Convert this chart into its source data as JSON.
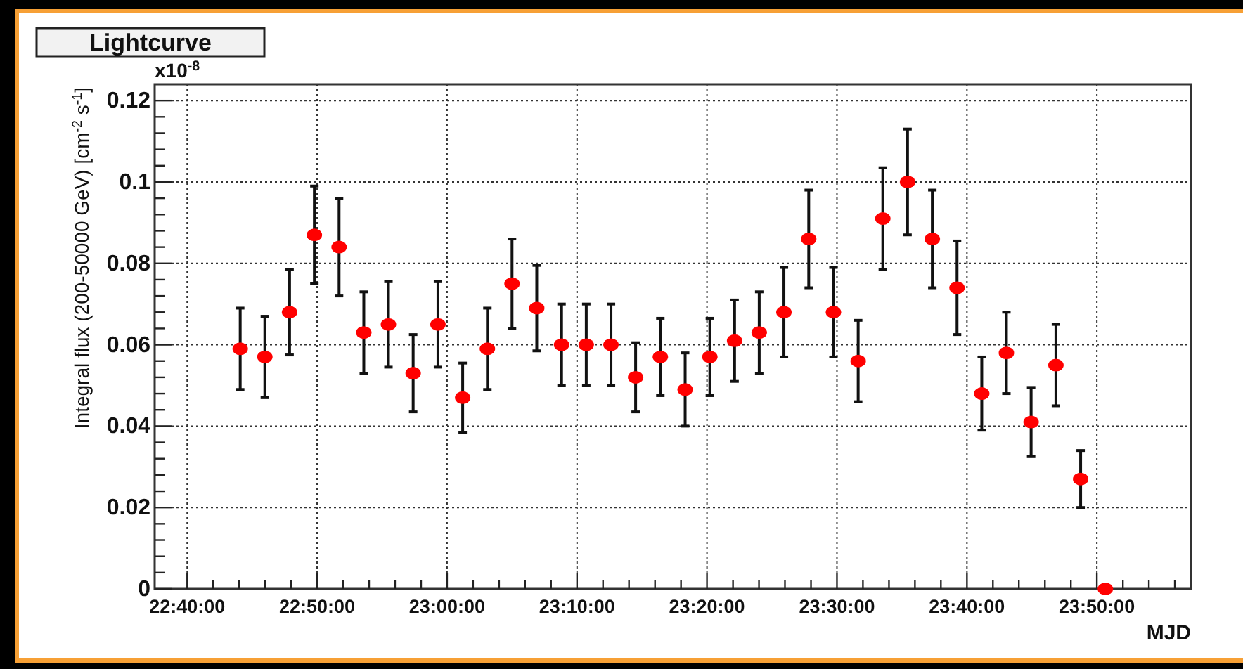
{
  "chart_data": {
    "type": "scatter",
    "title": "Lightcurve",
    "xlabel": "MJD",
    "ylabel": "Integral flux (200-50000 GeV) [cm$^{-2}$ s$^{-1}$]",
    "annotations": [
      "x10$^{-8}$"
    ],
    "x": [
      22.7347,
      22.7663,
      22.798,
      22.8298,
      22.8615,
      22.8932,
      22.9248,
      22.9565,
      22.9883,
      23.02,
      23.0517,
      23.0833,
      23.115,
      23.1468,
      23.1785,
      23.2102,
      23.2418,
      23.2735,
      23.3053,
      23.337,
      23.3687,
      23.4003,
      23.432,
      23.4638,
      23.4955,
      23.5272,
      23.5588,
      23.5905,
      23.6223,
      23.654,
      23.6857,
      23.7173,
      23.749,
      23.7808,
      23.8125,
      23.8442
    ],
    "series": [
      {
        "color": "#ff0000",
        "values": [
          0.059,
          0.057,
          0.068,
          0.087,
          0.084,
          0.063,
          0.065,
          0.053,
          0.065,
          0.047,
          0.059,
          0.075,
          0.069,
          0.06,
          0.06,
          0.06,
          0.052,
          0.057,
          0.049,
          0.057,
          0.061,
          0.063,
          0.068,
          0.086,
          0.068,
          0.056,
          0.091,
          0.1,
          0.086,
          0.074,
          0.048,
          0.058,
          0.041,
          0.055,
          0.027,
          0
        ],
        "errors": [
          0.01,
          0.01,
          0.0105,
          0.012,
          0.012,
          0.01,
          0.0105,
          0.0095,
          0.0105,
          0.0085,
          0.01,
          0.011,
          0.0105,
          0.01,
          0.01,
          0.01,
          0.0085,
          0.0095,
          0.009,
          0.0095,
          0.01,
          0.01,
          0.011,
          0.012,
          0.011,
          0.01,
          0.0125,
          0.013,
          0.012,
          0.0115,
          0.009,
          0.01,
          0.0085,
          0.01,
          0.007,
          null
        ]
      }
    ],
    "xlim": [
      22.625,
      23.954
    ],
    "xticks": [
      {
        "value": 22.6667,
        "label": "22:40:00"
      },
      {
        "value": 22.7,
        "label": null
      },
      {
        "value": 22.7333,
        "label": null
      },
      {
        "value": 22.7667,
        "label": null
      },
      {
        "value": 22.8,
        "label": null
      },
      {
        "value": 22.8333,
        "label": "22:50:00"
      },
      {
        "value": 22.8667,
        "label": null
      },
      {
        "value": 22.9,
        "label": null
      },
      {
        "value": 22.9333,
        "label": null
      },
      {
        "value": 22.9667,
        "label": null
      },
      {
        "value": 23.0,
        "label": "23:00:00"
      },
      {
        "value": 23.0333,
        "label": null
      },
      {
        "value": 23.0667,
        "label": null
      },
      {
        "value": 23.1,
        "label": null
      },
      {
        "value": 23.1333,
        "label": null
      },
      {
        "value": 23.1667,
        "label": "23:10:00"
      },
      {
        "value": 23.2,
        "label": null
      },
      {
        "value": 23.2333,
        "label": null
      },
      {
        "value": 23.2667,
        "label": null
      },
      {
        "value": 23.3,
        "label": null
      },
      {
        "value": 23.3333,
        "label": "23:20:00"
      },
      {
        "value": 23.3667,
        "label": null
      },
      {
        "value": 23.4,
        "label": null
      },
      {
        "value": 23.4333,
        "label": null
      },
      {
        "value": 23.4667,
        "label": null
      },
      {
        "value": 23.5,
        "label": "23:30:00"
      },
      {
        "value": 23.5333,
        "label": null
      },
      {
        "value": 23.5667,
        "label": null
      },
      {
        "value": 23.6,
        "label": null
      },
      {
        "value": 23.6333,
        "label": null
      },
      {
        "value": 23.6667,
        "label": "23:40:00"
      },
      {
        "value": 23.7,
        "label": null
      },
      {
        "value": 23.7333,
        "label": null
      },
      {
        "value": 23.7667,
        "label": null
      },
      {
        "value": 23.8,
        "label": null
      },
      {
        "value": 23.8333,
        "label": "23:50:00"
      },
      {
        "value": 23.8667,
        "label": null
      },
      {
        "value": 23.9,
        "label": null
      },
      {
        "value": 23.9333,
        "label": null
      }
    ],
    "ylim": [
      0,
      0.124
    ],
    "yticks": [
      0,
      {
        "value": 0.004,
        "label": null
      },
      {
        "value": 0.008,
        "label": null
      },
      {
        "value": 0.012,
        "label": null
      },
      {
        "value": 0.016,
        "label": null
      },
      0.02,
      {
        "value": 0.024,
        "label": null
      },
      {
        "value": 0.028,
        "label": null
      },
      {
        "value": 0.032,
        "label": null
      },
      {
        "value": 0.036,
        "label": null
      },
      0.04,
      {
        "value": 0.044,
        "label": null
      },
      {
        "value": 0.048,
        "label": null
      },
      {
        "value": 0.052,
        "label": null
      },
      {
        "value": 0.056,
        "label": null
      },
      0.06,
      {
        "value": 0.064,
        "label": null
      },
      {
        "value": 0.068,
        "label": null
      },
      {
        "value": 0.072,
        "label": null
      },
      {
        "value": 0.076,
        "label": null
      },
      0.08,
      {
        "value": 0.084,
        "label": null
      },
      {
        "value": 0.088,
        "label": null
      },
      {
        "value": 0.092,
        "label": null
      },
      {
        "value": 0.096,
        "label": null
      },
      0.1,
      {
        "value": 0.104,
        "label": null
      },
      {
        "value": 0.108,
        "label": null
      },
      {
        "value": 0.112,
        "label": null
      },
      {
        "value": 0.116,
        "label": null
      },
      0.12
    ],
    "grid": true,
    "marker": "circle"
  }
}
